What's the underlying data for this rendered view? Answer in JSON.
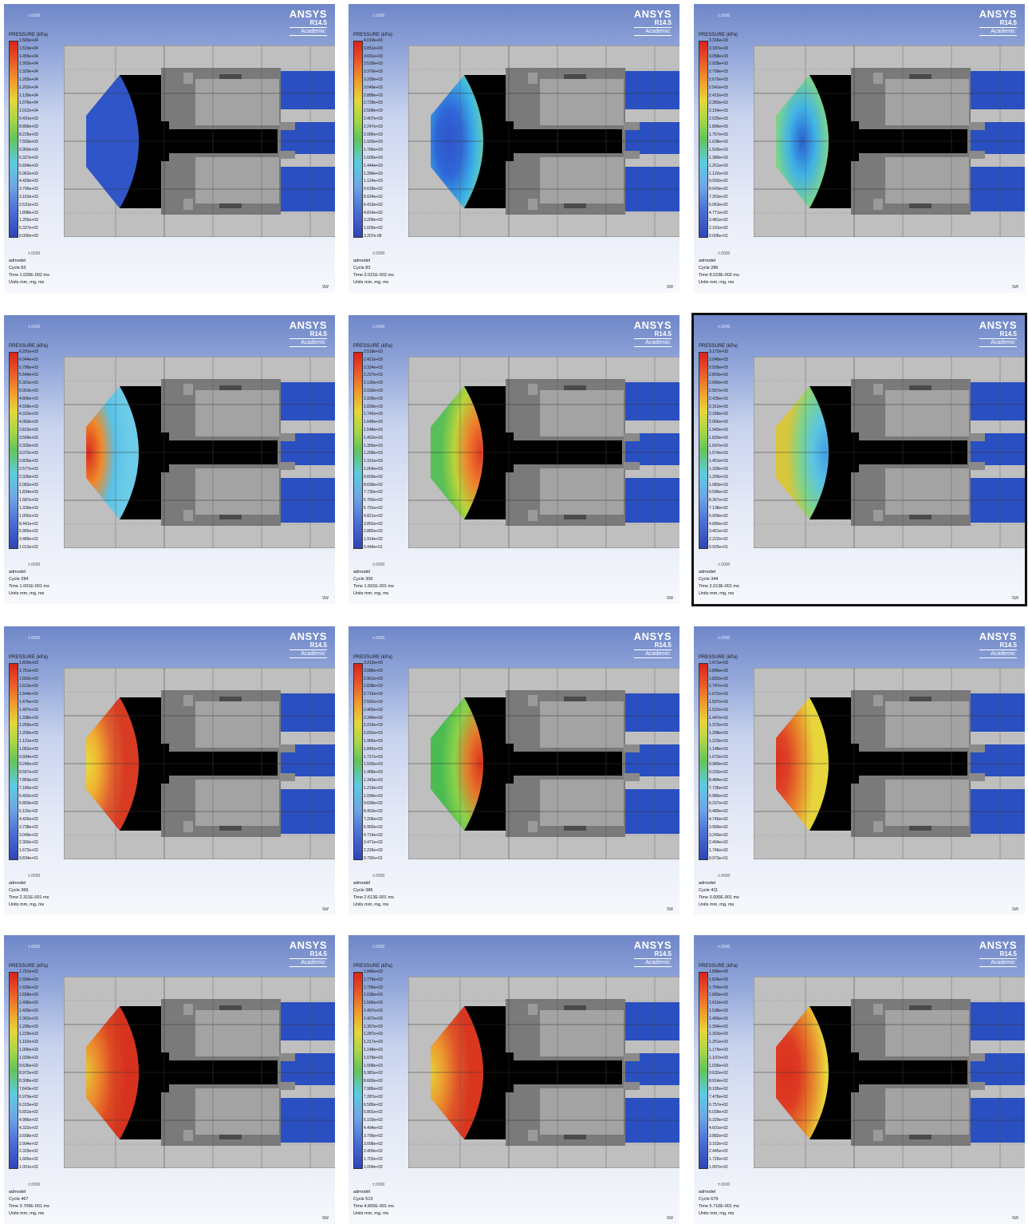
{
  "brand": {
    "name": "ANSYS",
    "version": "R14.5",
    "edition": "Academic"
  },
  "legend_title": "PRESSURE (kPa)",
  "axis_mark": "±.0000",
  "orientation": "SW",
  "model": "admodel",
  "units": "Units mm, mg, ms",
  "colors": {
    "background_top": "#6f87c9",
    "fluid": "#2a4fc0",
    "solid": "#000000",
    "steel": "#8a8a8a"
  },
  "panels": [
    {
      "cycle": "Cycle 83",
      "time": "Time 1.026E-002 ms",
      "selected": false,
      "ticks": [
        "1.583e+04",
        "1.515e+04",
        "1.455e+04",
        "1.393e+04",
        "1.329e+04",
        "1.265e+04",
        "1.202e+04",
        "1.139e+04",
        "1.076e+04",
        "1.012e+04",
        "9.491e+03",
        "8.858e+03",
        "8.226e+03",
        "7.593e+03",
        "6.960e+03",
        "6.327e+03",
        "5.694e+03",
        "5.062e+03",
        "4.429e+03",
        "3.796e+03",
        "3.163e+03",
        "2.531e+03",
        "1.898e+03",
        "1.265e+03",
        "6.327e+02",
        "0.000e+00"
      ]
    },
    {
      "cycle": "Cycle 83",
      "time": "Time 2.021E-002 ms",
      "selected": false,
      "ticks": [
        "4.010e+03",
        "3.851e+03",
        "3.691e+03",
        "3.530e+03",
        "3.370e+03",
        "3.209e+03",
        "3.049e+03",
        "2.888e+03",
        "2.728e+03",
        "2.568e+03",
        "2.407e+03",
        "2.247e+03",
        "2.086e+03",
        "1.926e+03",
        "1.766e+03",
        "1.605e+03",
        "1.444e+03",
        "1.284e+03",
        "1.124e+03",
        "9.628e+02",
        "8.024e+02",
        "6.419e+02",
        "4.814e+02",
        "3.209e+02",
        "1.605e+02",
        "3.207e-06"
      ]
    },
    {
      "cycle": "Cycle 286",
      "time": "Time 8.023E-002 ms",
      "selected": false,
      "ticks": [
        "3.316e+03",
        "3.187e+03",
        "3.058e+03",
        "2.928e+03",
        "2.799e+03",
        "2.670e+03",
        "2.541e+03",
        "2.412e+03",
        "2.283e+03",
        "2.154e+03",
        "2.025e+03",
        "1.896e+03",
        "1.767e+03",
        "1.638e+03",
        "1.509e+03",
        "1.380e+03",
        "1.251e+03",
        "1.122e+03",
        "9.932e+02",
        "8.643e+02",
        "7.353e+02",
        "6.063e+02",
        "4.771e+02",
        "3.481e+02",
        "2.191e+02",
        "9.006e+01"
      ]
    },
    {
      "cycle": "Cycle 284",
      "time": "Time 1.001E-001 ms",
      "selected": false,
      "ticks": [
        "6.291e+03",
        "6.044e+03",
        "5.796e+03",
        "5.549e+03",
        "5.301e+03",
        "5.053e+03",
        "4.806e+03",
        "4.558e+03",
        "4.310e+03",
        "4.063e+03",
        "3.815e+03",
        "3.568e+03",
        "3.320e+03",
        "3.072e+03",
        "2.825e+03",
        "2.577e+03",
        "2.330e+03",
        "2.082e+03",
        "1.834e+03",
        "1.587e+03",
        "1.339e+03",
        "1.092e+03",
        "8.441e+02",
        "5.965e+02",
        "3.489e+02",
        "1.013e+02"
      ]
    },
    {
      "cycle": "Cycle 306",
      "time": "Time 1.501E-001 ms",
      "selected": false,
      "ticks": [
        "2.518e+03",
        "2.421e+03",
        "2.324e+03",
        "2.227e+03",
        "2.130e+03",
        "2.033e+03",
        "1.936e+03",
        "1.839e+03",
        "1.742e+03",
        "1.645e+03",
        "1.548e+03",
        "1.452e+03",
        "1.355e+03",
        "1.258e+03",
        "1.161e+03",
        "1.064e+03",
        "9.669e+02",
        "8.699e+02",
        "7.730e+02",
        "6.760e+02",
        "5.791e+02",
        "4.821e+02",
        "3.852e+02",
        "2.882e+02",
        "1.914e+02",
        "9.449e+01"
      ]
    },
    {
      "cycle": "Cycle 344",
      "time": "Time 2.013E-001 ms",
      "selected": true,
      "ticks": [
        "3.172e+03",
        "3.049e+03",
        "2.926e+03",
        "2.803e+03",
        "2.680e+03",
        "2.557e+03",
        "2.435e+03",
        "2.312e+03",
        "2.189e+03",
        "2.066e+03",
        "1.943e+03",
        "1.820e+03",
        "1.697e+03",
        "1.574e+03",
        "1.451e+03",
        "1.328e+03",
        "1.205e+03",
        "1.083e+03",
        "9.596e+02",
        "8.367e+02",
        "7.138e+02",
        "5.909e+02",
        "4.680e+02",
        "3.451e+02",
        "2.222e+02",
        "9.925e+01"
      ]
    },
    {
      "cycle": "Cycle 366",
      "time": "Time 2.311E-001 ms",
      "selected": false,
      "ticks": [
        "1.820e+03",
        "1.751e+03",
        "1.682e+03",
        "1.613e+03",
        "1.544e+03",
        "1.476e+03",
        "1.407e+03",
        "1.338e+03",
        "1.269e+03",
        "1.200e+03",
        "1.131e+03",
        "1.062e+03",
        "9.934e+02",
        "9.246e+02",
        "8.557e+02",
        "7.869e+02",
        "7.180e+02",
        "6.492e+02",
        "5.803e+02",
        "5.115e+02",
        "4.426e+02",
        "3.738e+02",
        "3.049e+02",
        "2.360e+02",
        "1.672e+02",
        "9.834e+01"
      ]
    },
    {
      "cycle": "Cycle 386",
      "time": "Time 2.613E-001 ms",
      "selected": false,
      "ticks": [
        "3.212e+03",
        "3.086e+03",
        "2.961e+03",
        "2.838e+03",
        "2.716e+03",
        "2.591e+03",
        "2.465e+03",
        "2.340e+03",
        "2.216e+03",
        "2.091e+03",
        "1.966e+03",
        "1.842e+03",
        "1.717e+03",
        "1.593e+03",
        "1.468e+03",
        "1.343e+03",
        "1.219e+03",
        "1.094e+03",
        "9.699e+02",
        "8.453e+02",
        "7.206e+02",
        "5.960e+02",
        "4.714e+02",
        "3.471e+02",
        "2.226e+02",
        "9.792e+01"
      ]
    },
    {
      "cycle": "Cycle 411",
      "time": "Time 3.000E-001 ms",
      "selected": false,
      "ticks": [
        "1.971e+03",
        "1.896e+03",
        "1.822e+03",
        "1.747e+03",
        "1.672e+03",
        "1.597e+03",
        "1.522e+03",
        "1.447e+03",
        "1.372e+03",
        "1.298e+03",
        "1.223e+03",
        "1.148e+03",
        "1.073e+03",
        "9.980e+02",
        "9.232e+02",
        "8.484e+02",
        "7.735e+02",
        "6.986e+02",
        "6.237e+02",
        "5.489e+02",
        "4.740e+02",
        "3.990e+02",
        "3.243e+02",
        "2.494e+02",
        "1.746e+02",
        "9.973e+01"
      ]
    },
    {
      "cycle": "Cycle 467",
      "time": "Time 3.709E-001 ms",
      "selected": false,
      "ticks": [
        "1.761e+03",
        "1.694e+03",
        "1.626e+03",
        "1.558e+03",
        "1.496e+03",
        "1.429e+03",
        "1.362e+03",
        "1.295e+03",
        "1.229e+03",
        "1.162e+03",
        "1.096e+03",
        "1.029e+03",
        "9.636e+02",
        "8.972e+02",
        "8.308e+02",
        "7.643e+02",
        "6.979e+02",
        "6.315e+02",
        "5.651e+02",
        "4.986e+02",
        "4.322e+02",
        "3.658e+02",
        "2.994e+02",
        "2.329e+02",
        "1.665e+02",
        "1.001e+02"
      ]
    },
    {
      "cycle": "Cycle 513",
      "time": "Time 4.805E-001 ms",
      "selected": false,
      "ticks": [
        "1.846e+03",
        "1.776e+03",
        "1.706e+03",
        "1.636e+03",
        "1.566e+03",
        "1.497e+03",
        "1.427e+03",
        "1.357e+03",
        "1.287e+03",
        "1.217e+03",
        "1.148e+03",
        "1.078e+03",
        "1.008e+03",
        "9.381e+02",
        "8.683e+02",
        "7.986e+02",
        "7.287e+02",
        "6.589e+02",
        "5.891e+02",
        "5.193e+02",
        "4.494e+02",
        "3.796e+02",
        "3.098e+02",
        "2.400e+02",
        "1.702e+02",
        "1.004e+02"
      ]
    },
    {
      "cycle": "Cycle 679",
      "time": "Time 5.710E-001 ms",
      "selected": false,
      "ticks": [
        "1.896e+03",
        "1.826e+03",
        "1.754e+03",
        "1.683e+03",
        "1.610e+03",
        "1.538e+03",
        "1.466e+03",
        "1.394e+03",
        "1.323e+03",
        "1.251e+03",
        "1.179e+03",
        "1.107e+03",
        "1.036e+03",
        "9.632e+02",
        "8.914e+02",
        "8.195e+02",
        "7.476e+02",
        "6.757e+02",
        "6.039e+02",
        "5.320e+02",
        "4.601e+02",
        "3.882e+02",
        "3.163e+02",
        "2.445e+02",
        "1.726e+02",
        "1.007e+02"
      ]
    }
  ]
}
